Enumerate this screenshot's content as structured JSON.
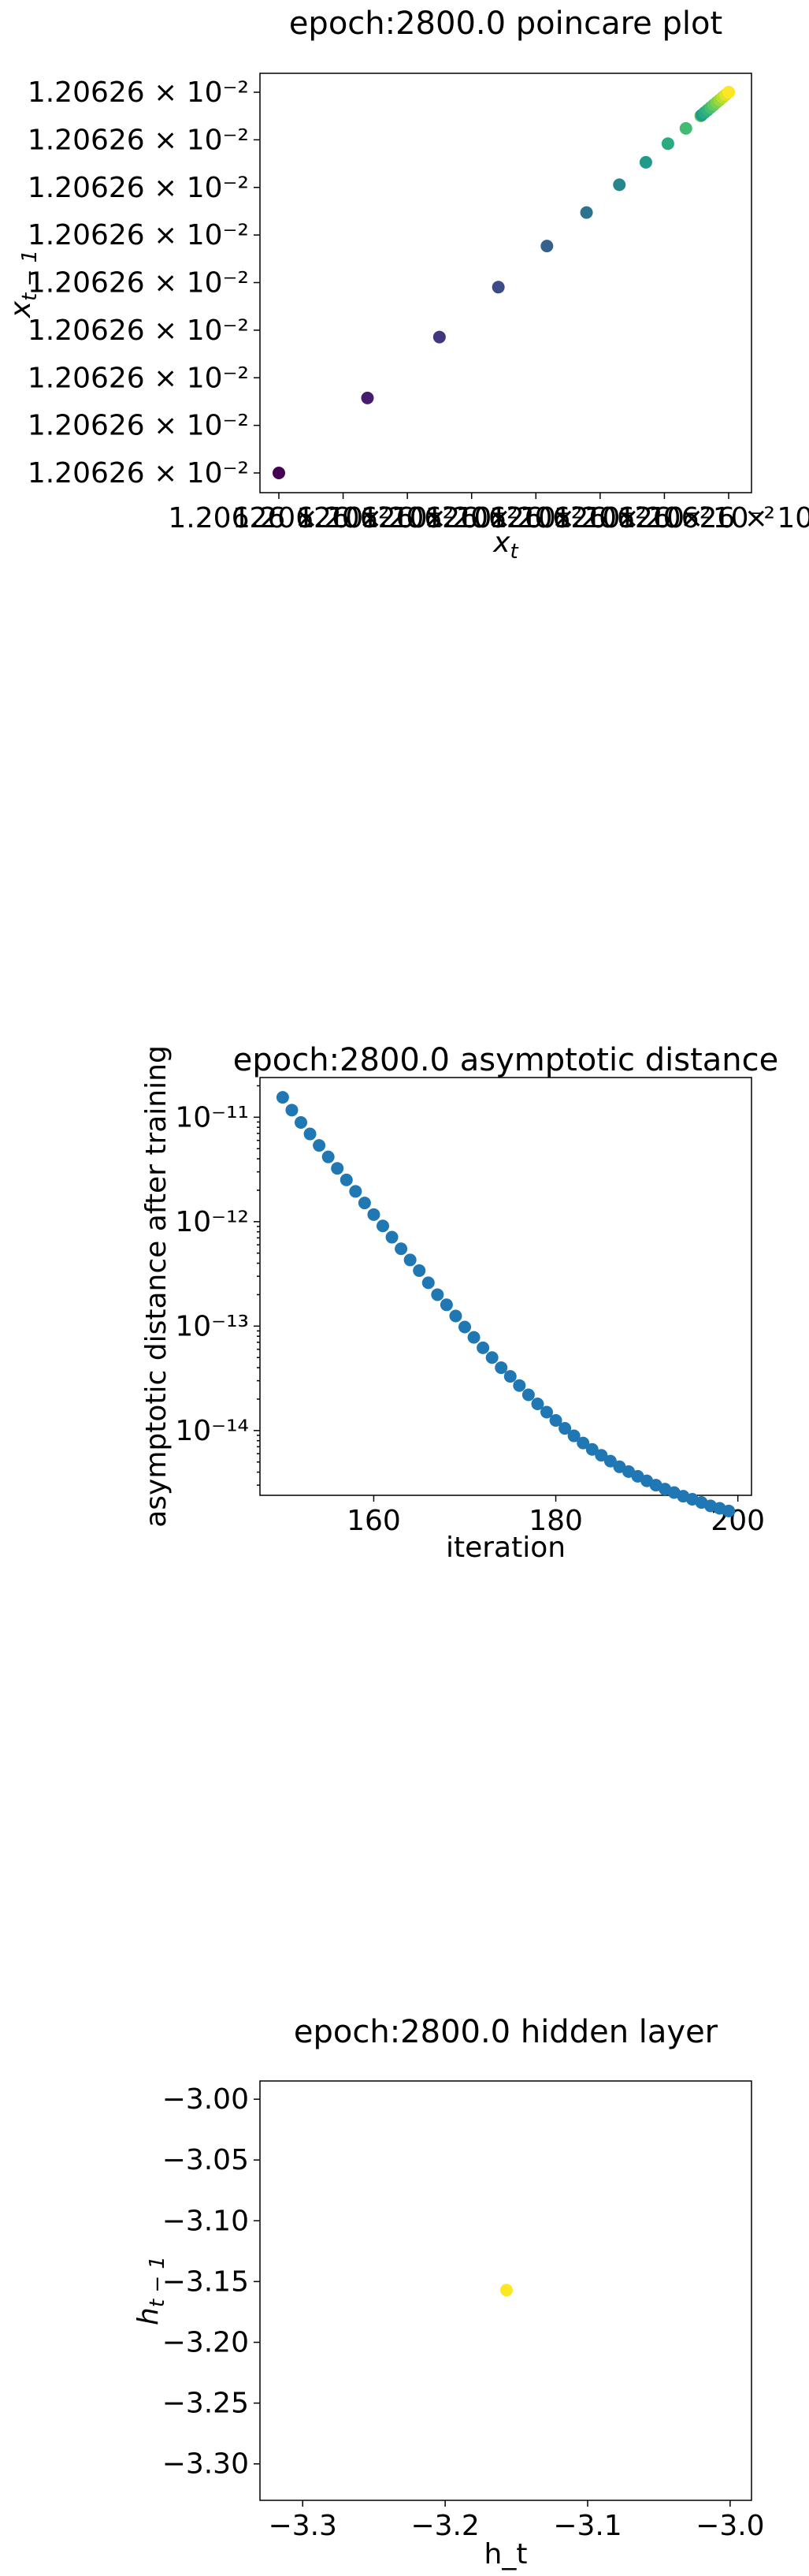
{
  "chart_data": [
    {
      "type": "scatter",
      "title": "epoch:2800.0 poincare plot",
      "xlabel": "x_t",
      "ylabel": "x_{t-1}",
      "x_tick_labels": [
        "1.20626 × 10⁻²",
        "1.20626 × 10⁻²",
        "1.20626 × 10⁻²",
        "1.20626 × 10⁻²",
        "1.20626 × 10⁻²",
        "1.20626 × 10⁻²",
        "1.20626 × 10⁻²",
        "1.20626 × 10⁻²"
      ],
      "y_tick_labels": [
        "1.20626 × 10⁻²",
        "1.20626 × 10⁻²",
        "1.20626 × 10⁻²",
        "1.20626 × 10⁻²",
        "1.20626 × 10⁻²",
        "1.20626 × 10⁻²",
        "1.20626 × 10⁻²",
        "1.20626 × 10⁻²",
        "1.20626 × 10⁻²"
      ],
      "colormap": "viridis",
      "color_encodes": "iteration",
      "points_relative": [
        [
          0.0,
          0.0
        ],
        [
          0.197,
          0.197
        ],
        [
          0.357,
          0.357
        ],
        [
          0.488,
          0.488
        ],
        [
          0.596,
          0.596
        ],
        [
          0.684,
          0.684
        ],
        [
          0.757,
          0.757
        ],
        [
          0.816,
          0.816
        ],
        [
          0.865,
          0.865
        ],
        [
          0.905,
          0.905
        ],
        [
          0.938,
          0.938
        ],
        [
          0.966,
          0.966
        ],
        [
          0.988,
          0.988
        ],
        [
          1.0,
          1.0
        ]
      ],
      "note_values": "all tick labels read 1.20626e-2; points lie on the diagonal from lower-left to upper-right"
    },
    {
      "type": "scatter",
      "title": "epoch:2800.0 asymptotic distance",
      "xlabel": "iteration",
      "ylabel": "asymptotic distance after training",
      "x_ticks": [
        160,
        180,
        200
      ],
      "y_scale": "log",
      "y_ticks": [
        1e-14,
        1e-13,
        1e-12,
        1e-11
      ],
      "y_tick_labels": [
        "10⁻¹⁴",
        "10⁻¹³",
        "10⁻¹²",
        "10⁻¹¹"
      ],
      "xlim": [
        147.5,
        201.5
      ],
      "ylim_log10": [
        -14.62,
        -10.62
      ],
      "color": "#1f77b4",
      "x": [
        150,
        151,
        152,
        153,
        154,
        155,
        156,
        157,
        158,
        159,
        160,
        161,
        162,
        163,
        164,
        165,
        166,
        167,
        168,
        169,
        170,
        171,
        172,
        173,
        174,
        175,
        176,
        177,
        178,
        179,
        180,
        181,
        182,
        183,
        184,
        185,
        186,
        187,
        188,
        189,
        190,
        191,
        192,
        193,
        194,
        195,
        196,
        197,
        198,
        199
      ],
      "y": [
        1.55e-11,
        1.17e-11,
        8.91e-12,
        6.92e-12,
        5.37e-12,
        4.17e-12,
        3.24e-12,
        2.51e-12,
        1.95e-12,
        1.51e-12,
        1.17e-12,
        9.1e-13,
        7.1e-13,
        5.5e-13,
        4.3e-13,
        3.4e-13,
        2.6e-13,
        2e-13,
        1.6e-13,
        1.25e-13,
        9.8e-14,
        7.8e-14,
        6.2e-14,
        5e-14,
        4e-14,
        3.3e-14,
        2.7e-14,
        2.2e-14,
        1.8e-14,
        1.5e-14,
        1.25e-14,
        1.05e-14,
        8.9e-15,
        7.6e-15,
        6.6e-15,
        5.8e-15,
        5.1e-15,
        4.5e-15,
        4.05e-15,
        3.65e-15,
        3.3e-15,
        3e-15,
        2.75e-15,
        2.55e-15,
        2.35e-15,
        2.2e-15,
        2.05e-15,
        1.9e-15,
        1.8e-15,
        1.7e-15
      ]
    },
    {
      "type": "scatter",
      "title": "epoch:2800.0 hidden layer",
      "xlabel": "h_t",
      "ylabel": "h_{t-1}",
      "x_ticks": [
        -3.3,
        -3.2,
        -3.1,
        -3.0
      ],
      "x_tick_labels": [
        "−3.3",
        "−3.2",
        "−3.1",
        "−3.0"
      ],
      "y_ticks": [
        -3.0,
        -3.05,
        -3.1,
        -3.15,
        -3.2,
        -3.25,
        -3.3
      ],
      "y_tick_labels": [
        "−3.00",
        "−3.05",
        "−3.10",
        "−3.15",
        "−3.20",
        "−3.25",
        "−3.30"
      ],
      "xlim": [
        -3.33,
        -2.985
      ],
      "ylim": [
        -3.33,
        -2.985
      ],
      "color": "#fde725",
      "x": [
        -3.157
      ],
      "y": [
        -3.157
      ]
    }
  ]
}
